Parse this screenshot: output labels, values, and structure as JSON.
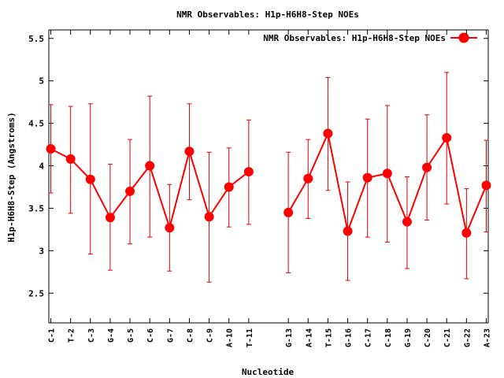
{
  "chart_data": {
    "type": "line",
    "title": "NMR Observables: H1p-H6H8-Step NOEs",
    "xlabel": "Nucleotide",
    "ylabel": "H1p-H6H8-Step (Angstroms)",
    "legend": "NMR Observables: H1p-H6H8-Step NOEs",
    "legend_position": "top-right",
    "grid": false,
    "colors": {
      "series": "#ff0000",
      "error": "#dd0000",
      "axis": "#000000",
      "background": "#ffffff"
    },
    "ylim": [
      2.15,
      5.6
    ],
    "yticks": [
      2.5,
      3,
      3.5,
      4,
      4.5,
      5,
      5.5
    ],
    "ytick_labels": [
      "2.5",
      "3",
      "3.5",
      "4",
      "4.5",
      "5",
      "5.5"
    ],
    "categories": [
      "C-1",
      "T-2",
      "C-3",
      "G-4",
      "G-5",
      "C-6",
      "G-7",
      "C-8",
      "C-9",
      "A-10",
      "T-11",
      "G-13",
      "A-14",
      "T-15",
      "G-16",
      "C-17",
      "C-18",
      "G-19",
      "C-20",
      "C-21",
      "G-22",
      "A-23"
    ],
    "x": [
      1,
      2,
      3,
      4,
      5,
      6,
      7,
      8,
      9,
      10,
      11,
      13,
      14,
      15,
      16,
      17,
      18,
      19,
      20,
      21,
      22,
      23
    ],
    "series": [
      {
        "name": "NMR Observables: H1p-H6H8-Step NOEs",
        "values": [
          4.2,
          4.08,
          3.84,
          3.39,
          3.7,
          4.0,
          3.27,
          4.17,
          3.4,
          3.75,
          3.93,
          3.45,
          3.85,
          4.38,
          3.23,
          3.86,
          3.91,
          3.34,
          3.98,
          4.33,
          3.21,
          3.77
        ],
        "lower": [
          3.68,
          3.44,
          2.96,
          2.77,
          3.08,
          3.16,
          2.76,
          3.6,
          2.63,
          3.28,
          3.31,
          2.74,
          3.38,
          3.71,
          2.65,
          3.16,
          3.1,
          2.79,
          3.36,
          3.55,
          2.67,
          3.22
        ],
        "upper": [
          4.72,
          4.7,
          4.73,
          4.02,
          4.31,
          4.82,
          3.78,
          4.73,
          4.16,
          4.21,
          4.54,
          4.16,
          4.31,
          5.04,
          3.81,
          4.55,
          4.71,
          3.87,
          4.6,
          5.1,
          3.73,
          4.3
        ]
      }
    ]
  }
}
